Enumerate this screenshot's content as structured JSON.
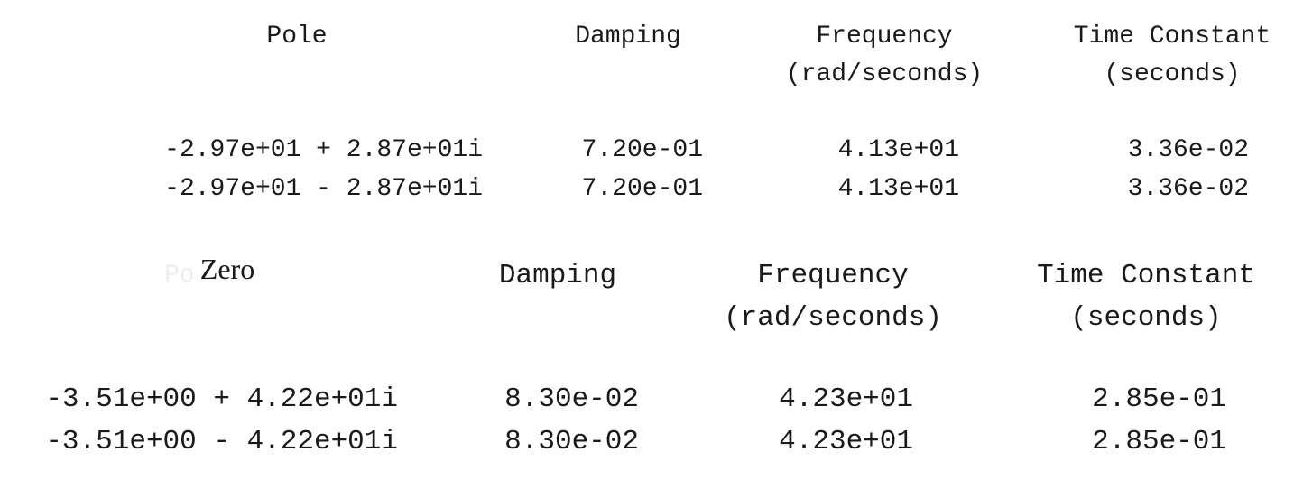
{
  "tables": [
    {
      "headers": {
        "first": "Pole",
        "damping": "Damping",
        "frequency": [
          "Frequency",
          "(rad/seconds)"
        ],
        "time_constant": [
          "Time Constant",
          "(seconds)"
        ]
      },
      "rows": [
        {
          "pole": "-2.97e+01 + 2.87e+01i",
          "damping": "7.20e-01",
          "frequency": "4.13e+01",
          "time_constant": "3.36e-02"
        },
        {
          "pole": "-2.97e+01 - 2.87e+01i",
          "damping": "7.20e-01",
          "frequency": "4.13e+01",
          "time_constant": "3.36e-02"
        }
      ]
    },
    {
      "headers": {
        "first": "Zero",
        "first_ghost": "Po",
        "damping": "Damping",
        "frequency": [
          "Frequency",
          "(rad/seconds)"
        ],
        "time_constant": [
          "Time Constant",
          "(seconds)"
        ]
      },
      "rows": [
        {
          "pole": "-3.51e+00 + 4.22e+01i",
          "damping": "8.30e-02",
          "frequency": "4.23e+01",
          "time_constant": "2.85e-01"
        },
        {
          "pole": "-3.51e+00 - 4.22e+01i",
          "damping": "8.30e-02",
          "frequency": "4.23e+01",
          "time_constant": "2.85e-01"
        }
      ]
    }
  ]
}
